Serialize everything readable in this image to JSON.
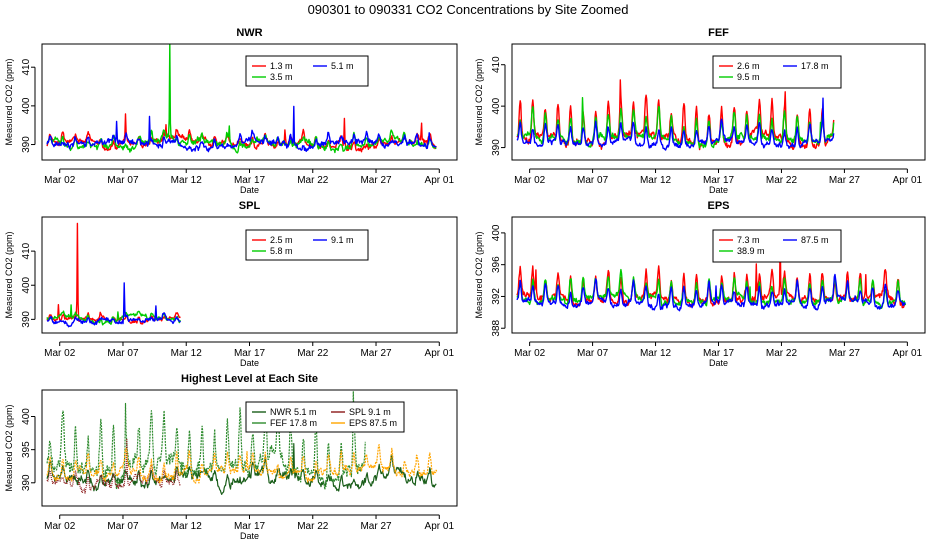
{
  "figure": {
    "title": "090301  to  090331 CO2 Concentrations by Site Zoomed"
  },
  "chart_data": [
    {
      "type": "line",
      "title": "NWR",
      "xlabel": "Date",
      "ylabel": "Measured CO2 (ppm)",
      "x_ticks": [
        "Mar 02",
        "Mar 07",
        "Mar 12",
        "Mar 17",
        "Mar 22",
        "Mar 27",
        "Apr 01"
      ],
      "x_tick_days": [
        2,
        7,
        12,
        17,
        22,
        27,
        32
      ],
      "xlim": [
        0.6,
        33.4
      ],
      "y_ticks": [
        390,
        400,
        410
      ],
      "ylim": [
        386,
        416
      ],
      "legend_position": "top-right",
      "legend_columns": 2,
      "series": [
        {
          "name": "1.3 m",
          "color": "#ff0000",
          "x_end": 31.8,
          "base": 390,
          "amp": 1.5,
          "noise": 1.0,
          "var": 1.0,
          "spikes": [
            [
              7.2,
              6
            ],
            [
              10.4,
              4
            ],
            [
              19.8,
              4
            ],
            [
              24.5,
              7
            ],
            [
              30.6,
              4
            ]
          ]
        },
        {
          "name": "3.5 m",
          "color": "#00cc00",
          "x_end": 31.8,
          "base": 390,
          "amp": 1.5,
          "noise": 1.0,
          "var": 1.0,
          "spikes": [
            [
              10.7,
              24
            ],
            [
              15.4,
              4
            ]
          ]
        },
        {
          "name": "5.1 m",
          "color": "#0000ff",
          "x_end": 31.8,
          "base": 390,
          "amp": 1.5,
          "noise": 1.0,
          "var": 1.0,
          "spikes": [
            [
              6.5,
              5
            ],
            [
              9.1,
              7
            ],
            [
              20.5,
              10
            ],
            [
              31.2,
              2
            ]
          ]
        }
      ]
    },
    {
      "type": "line",
      "title": "FEF",
      "xlabel": "Date",
      "ylabel": "Measured CO2 (ppm)",
      "x_ticks": [
        "Mar 02",
        "Mar 07",
        "Mar 12",
        "Mar 17",
        "Mar 22",
        "Mar 27",
        "Apr 01"
      ],
      "x_tick_days": [
        2,
        7,
        12,
        17,
        22,
        27,
        32
      ],
      "xlim": [
        0.6,
        33.4
      ],
      "y_ticks": [
        390,
        400,
        410
      ],
      "ylim": [
        387,
        415
      ],
      "legend_position": "top-right",
      "legend_columns": 2,
      "series": [
        {
          "name": "2.6 m",
          "color": "#ff0000",
          "x_end": 26.2,
          "base": 392,
          "amp": 10,
          "noise": 1.2,
          "var": 0.35,
          "spikes": [
            [
              9.2,
              5
            ],
            [
              22.3,
              5
            ]
          ]
        },
        {
          "name": "9.5 m",
          "color": "#00cc00",
          "x_end": 26.2,
          "base": 392,
          "amp": 7,
          "noise": 1.0,
          "var": 0.35,
          "spikes": [
            [
              6.2,
              6
            ],
            [
              25.1,
              3
            ]
          ]
        },
        {
          "name": "17.8 m",
          "color": "#0000ff",
          "x_end": 26.2,
          "base": 391,
          "amp": 5,
          "noise": 0.9,
          "var": 0.35,
          "spikes": [
            [
              25.3,
              7
            ]
          ]
        }
      ]
    },
    {
      "type": "line",
      "title": "SPL",
      "xlabel": "Date",
      "ylabel": "Measured CO2 (ppm)",
      "x_ticks": [
        "Mar 02",
        "Mar 07",
        "Mar 12",
        "Mar 17",
        "Mar 22",
        "Mar 27",
        "Apr 01"
      ],
      "x_tick_days": [
        2,
        7,
        12,
        17,
        22,
        27,
        32
      ],
      "xlim": [
        0.6,
        33.4
      ],
      "y_ticks": [
        390,
        400,
        410
      ],
      "ylim": [
        386,
        420
      ],
      "legend_position": "top-right",
      "legend_columns": 2,
      "series": [
        {
          "name": "2.5 m",
          "color": "#ff0000",
          "x_end": 11.6,
          "base": 390,
          "amp": 1.0,
          "noise": 0.8,
          "var": 1.0,
          "spikes": [
            [
              1.9,
              4
            ],
            [
              3.4,
              28
            ]
          ]
        },
        {
          "name": "5.8 m",
          "color": "#00cc00",
          "x_end": 11.6,
          "base": 390,
          "amp": 1.0,
          "noise": 0.8,
          "var": 1.0,
          "spikes": [
            [
              2.9,
              4
            ],
            [
              6.6,
              3
            ]
          ]
        },
        {
          "name": "9.1 m",
          "color": "#0000ff",
          "x_end": 11.6,
          "base": 389.5,
          "amp": 1.0,
          "noise": 0.8,
          "var": 1.0,
          "spikes": [
            [
              7.1,
              11
            ],
            [
              9.6,
              4
            ]
          ]
        }
      ]
    },
    {
      "type": "line",
      "title": "EPS",
      "xlabel": "Date",
      "ylabel": "Measured CO2 (ppm)",
      "x_ticks": [
        "Mar 02",
        "Mar 07",
        "Mar 12",
        "Mar 17",
        "Mar 22",
        "Mar 27",
        "Apr 01"
      ],
      "x_tick_days": [
        2,
        7,
        12,
        17,
        22,
        27,
        32
      ],
      "xlim": [
        0.6,
        33.4
      ],
      "y_ticks": [
        388,
        392,
        396,
        400
      ],
      "ylim": [
        387.4,
        402
      ],
      "legend_position": "top-right",
      "legend_columns": 2,
      "series": [
        {
          "name": "7.3 m",
          "color": "#ff0000",
          "x_end": 31.9,
          "base": 391.5,
          "amp": 3.5,
          "noise": 0.6,
          "var": 0.4,
          "spikes": [
            [
              2.5,
              3
            ],
            [
              20.0,
              4
            ],
            [
              21.9,
              7
            ],
            [
              28.7,
              3
            ]
          ]
        },
        {
          "name": "38.9 m",
          "color": "#00cc00",
          "x_end": 31.9,
          "base": 391.5,
          "amp": 3.0,
          "noise": 0.5,
          "var": 0.4,
          "spikes": [
            [
              19.5,
              2
            ]
          ]
        },
        {
          "name": "87.5 m",
          "color": "#0000ff",
          "x_end": 31.9,
          "base": 391.2,
          "amp": 2.6,
          "noise": 0.5,
          "var": 0.4,
          "spikes": [
            [
              16.8,
              2
            ]
          ]
        }
      ]
    },
    {
      "type": "line",
      "title": "Highest Level at Each Site",
      "xlabel": "Date",
      "ylabel": "Measured CO2 (ppm)",
      "x_ticks": [
        "Mar 02",
        "Mar 07",
        "Mar 12",
        "Mar 17",
        "Mar 22",
        "Mar 27",
        "Apr 01"
      ],
      "x_tick_days": [
        2,
        7,
        12,
        17,
        22,
        27,
        32
      ],
      "xlim": [
        0.6,
        33.4
      ],
      "y_ticks": [
        390,
        395,
        400
      ],
      "ylim": [
        386.5,
        404
      ],
      "legend_position": "top-right",
      "legend_columns": 2,
      "series": [
        {
          "name": "NWR",
          "height": "5.1 m",
          "color": "#1a5e1a",
          "x_end": 31.8,
          "base": 390.5,
          "amp": 1.2,
          "noise": 0.9,
          "var": 1.0,
          "spikes": [
            [
              20.5,
              5
            ]
          ]
        },
        {
          "name": "FEF",
          "height": "17.8 m",
          "color": "#2e8b2e",
          "x_end": 26.2,
          "base": 392,
          "amp": 8,
          "noise": 1.5,
          "var": 0.35,
          "spikes": [
            [
              7.2,
              6
            ],
            [
              25.2,
              5
            ]
          ]
        },
        {
          "name": "SPL",
          "height": "9.1 m",
          "color": "#8b1a1a",
          "x_end": 11.6,
          "base": 390,
          "amp": 1.2,
          "noise": 0.8,
          "var": 1.0,
          "spikes": [
            [
              7.3,
              5
            ]
          ]
        },
        {
          "name": "EPS",
          "height": "87.5 m",
          "color": "#ffa500",
          "x_end": 31.9,
          "base": 391.5,
          "amp": 3.0,
          "noise": 0.8,
          "var": 0.4,
          "spikes": [
            [
              16.8,
              3
            ]
          ]
        }
      ]
    }
  ]
}
